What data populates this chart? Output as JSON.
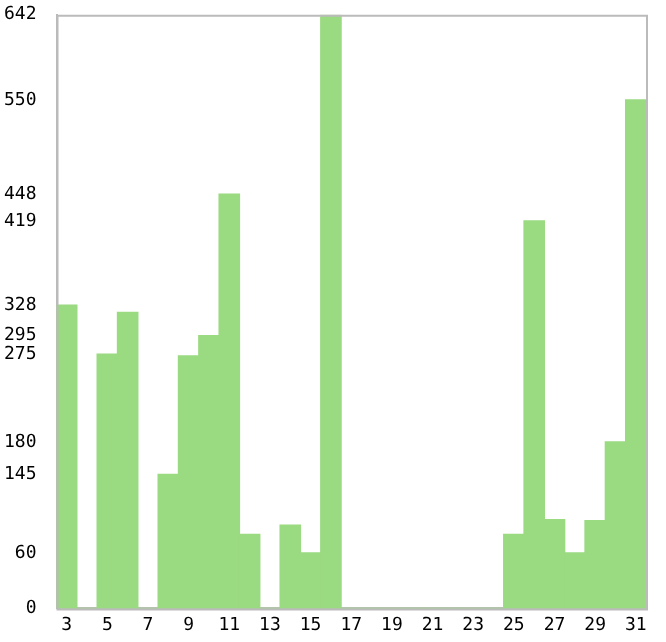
{
  "chart_data": {
    "type": "bar",
    "categories": [
      "3",
      null,
      "5",
      null,
      "7",
      null,
      "9",
      null,
      "11",
      null,
      "13",
      null,
      "15",
      null,
      "17",
      null,
      "19",
      null,
      "21",
      null,
      "23",
      null,
      "25",
      null,
      "27",
      null,
      "29",
      null,
      "31"
    ],
    "values": [
      328,
      0,
      275,
      320,
      0,
      145,
      273,
      295,
      448,
      80,
      0,
      90,
      60,
      642,
      0,
      0,
      0,
      0,
      0,
      0,
      0,
      0,
      80,
      419,
      96,
      60,
      95,
      180,
      550
    ],
    "color": "#9ada80",
    "ylim": [
      0,
      642
    ],
    "yticks": [
      0,
      60,
      145,
      180,
      275,
      295,
      328,
      419,
      448,
      550,
      642
    ],
    "grid": false
  }
}
